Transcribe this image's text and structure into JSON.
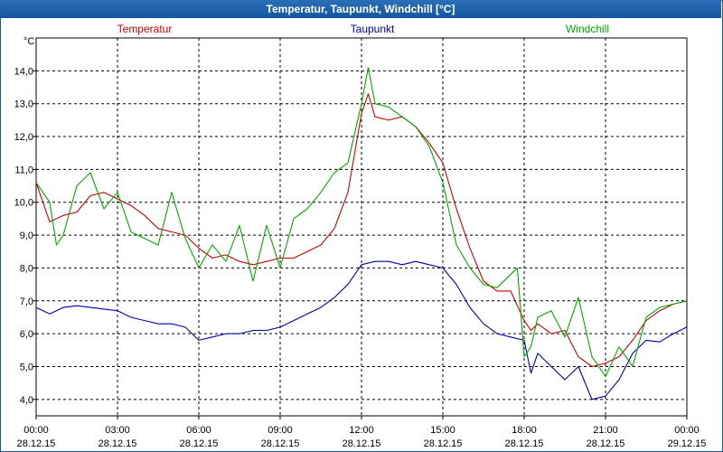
{
  "chart_data": {
    "type": "line",
    "title": "Temperatur, Taupunkt, Windchill [°C]",
    "ylabel": "°C",
    "ylim": [
      3.5,
      15.0
    ],
    "xlim": [
      0,
      24
    ],
    "grid": true,
    "legend_placement": "top",
    "yticks": [
      4.0,
      5.0,
      6.0,
      7.0,
      8.0,
      9.0,
      10.0,
      11.0,
      12.0,
      13.0,
      14.0
    ],
    "ytick_labels": [
      "4,0",
      "5,0",
      "6,0",
      "7,0",
      "8,0",
      "9,0",
      "10,0",
      "11,0",
      "12,0",
      "13,0",
      "14,0"
    ],
    "xticks": [
      0,
      3,
      6,
      9,
      12,
      15,
      18,
      21,
      24
    ],
    "xtick_labels": [
      {
        "time": "00:00",
        "date": "28.12.15"
      },
      {
        "time": "03:00",
        "date": "28.12.15"
      },
      {
        "time": "06:00",
        "date": "28.12.15"
      },
      {
        "time": "09:00",
        "date": "28.12.15"
      },
      {
        "time": "12:00",
        "date": "28.12.15"
      },
      {
        "time": "15:00",
        "date": "28.12.15"
      },
      {
        "time": "18:00",
        "date": "28.12.15"
      },
      {
        "time": "21:00",
        "date": "28.12.15"
      },
      {
        "time": "00:00",
        "date": "29.12.15"
      }
    ],
    "series": [
      {
        "name": "Temperatur",
        "color": "#cc0000",
        "legend_align": "left",
        "x": [
          0,
          0.5,
          1,
          1.5,
          2,
          2.5,
          3,
          3.5,
          4,
          4.5,
          5,
          5.5,
          6,
          6.5,
          7,
          7.5,
          8,
          8.5,
          9,
          9.5,
          10,
          10.5,
          11,
          11.5,
          12,
          12.25,
          12.5,
          13,
          13.5,
          14,
          14.5,
          15,
          15.5,
          16,
          16.5,
          17,
          17.5,
          18,
          18.25,
          18.5,
          19,
          19.5,
          20,
          20.5,
          21,
          21.5,
          22,
          22.5,
          23,
          23.5,
          24
        ],
        "values": [
          10.6,
          9.4,
          9.6,
          9.7,
          10.2,
          10.3,
          10.1,
          9.9,
          9.6,
          9.2,
          9.1,
          9.0,
          8.6,
          8.3,
          8.4,
          8.2,
          8.1,
          8.2,
          8.3,
          8.3,
          8.5,
          8.7,
          9.2,
          10.3,
          12.7,
          13.3,
          12.6,
          12.5,
          12.6,
          12.3,
          11.8,
          11.2,
          9.8,
          8.6,
          7.6,
          7.3,
          7.3,
          6.4,
          6.1,
          6.3,
          6.0,
          6.1,
          5.3,
          5.0,
          5.1,
          5.3,
          5.8,
          6.4,
          6.7,
          6.9,
          7.0
        ]
      },
      {
        "name": "Taupunkt",
        "color": "#0000aa",
        "legend_align": "center",
        "x": [
          0,
          0.5,
          1,
          1.5,
          2,
          2.5,
          3,
          3.5,
          4,
          4.5,
          5,
          5.5,
          6,
          6.5,
          7,
          7.5,
          8,
          8.5,
          9,
          9.5,
          10,
          10.5,
          11,
          11.5,
          12,
          12.5,
          13,
          13.5,
          14,
          14.5,
          15,
          15.5,
          16,
          16.5,
          17,
          17.5,
          18,
          18.25,
          18.5,
          19,
          19.5,
          20,
          20.5,
          21,
          21.5,
          22,
          22.5,
          23,
          23.5,
          24
        ],
        "values": [
          6.8,
          6.6,
          6.8,
          6.85,
          6.8,
          6.75,
          6.7,
          6.5,
          6.4,
          6.3,
          6.3,
          6.2,
          5.8,
          5.9,
          6.0,
          6.0,
          6.1,
          6.1,
          6.2,
          6.4,
          6.6,
          6.8,
          7.1,
          7.5,
          8.1,
          8.2,
          8.2,
          8.1,
          8.2,
          8.1,
          8.0,
          7.5,
          6.8,
          6.3,
          6.0,
          5.9,
          5.8,
          4.8,
          5.4,
          5.0,
          4.6,
          5.0,
          4.0,
          4.1,
          4.6,
          5.4,
          5.8,
          5.75,
          6.0,
          6.2
        ]
      },
      {
        "name": "Windchill",
        "color": "#00aa00",
        "legend_align": "right",
        "x": [
          0,
          0.5,
          0.75,
          1,
          1.5,
          2,
          2.5,
          3,
          3.5,
          4,
          4.5,
          5,
          5.5,
          6,
          6.5,
          7,
          7.5,
          8,
          8.5,
          9,
          9.5,
          10,
          10.5,
          11,
          11.5,
          12,
          12.25,
          12.5,
          13,
          13.5,
          14,
          14.5,
          15,
          15.5,
          16,
          16.5,
          17,
          17.5,
          17.75,
          18,
          18.25,
          18.5,
          19,
          19.5,
          20,
          20.5,
          21,
          21.5,
          22,
          22.5,
          23,
          23.5,
          24
        ],
        "values": [
          10.6,
          10.0,
          8.7,
          9.0,
          10.5,
          10.9,
          9.8,
          10.3,
          9.1,
          8.9,
          8.7,
          10.3,
          8.9,
          8.0,
          8.7,
          8.2,
          9.3,
          7.6,
          9.3,
          8.0,
          9.5,
          9.8,
          10.3,
          10.9,
          11.2,
          13.0,
          14.1,
          13.0,
          12.9,
          12.6,
          12.3,
          11.7,
          10.6,
          8.7,
          8.0,
          7.5,
          7.4,
          7.8,
          8.0,
          5.3,
          5.6,
          6.5,
          6.7,
          5.9,
          7.1,
          5.3,
          4.7,
          5.6,
          5.0,
          6.5,
          6.8,
          6.9,
          7.0
        ]
      }
    ]
  }
}
